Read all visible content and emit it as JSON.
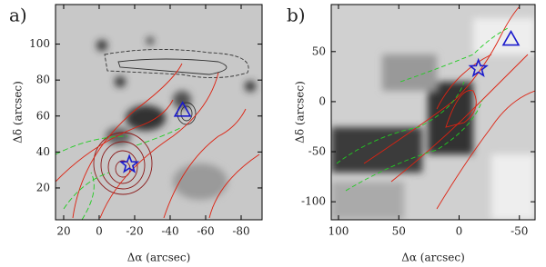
{
  "chart_data": [
    {
      "type": "scatter",
      "panel_label": "a)",
      "x_label": "Δα (arcsec)",
      "y_label": "Δδ (arcsec)",
      "x": [
        -17,
        -47
      ],
      "y": [
        33,
        63
      ],
      "markers": [
        "star",
        "triangle"
      ],
      "color": "#1a1acc",
      "xlim": [
        24.6,
        -91.8
      ],
      "ylim": [
        2.3,
        122
      ],
      "xticks": [
        20,
        0,
        -20,
        -40,
        -60,
        -80
      ],
      "yticks": [
        20,
        40,
        60,
        80,
        100
      ]
    },
    {
      "type": "scatter",
      "panel_label": "b)",
      "x_label": "Δα (arcsec)",
      "y_label": "Δδ (arcsec)",
      "x": [
        -16,
        -43
      ],
      "y": [
        33,
        62
      ],
      "markers": [
        "star",
        "triangle"
      ],
      "color": "#1a1acc",
      "xlim": [
        106,
        -63
      ],
      "ylim": [
        -118,
        97
      ],
      "xticks": [
        100,
        50,
        0,
        -50
      ],
      "yticks": [
        -100,
        -50,
        0,
        50
      ]
    }
  ]
}
